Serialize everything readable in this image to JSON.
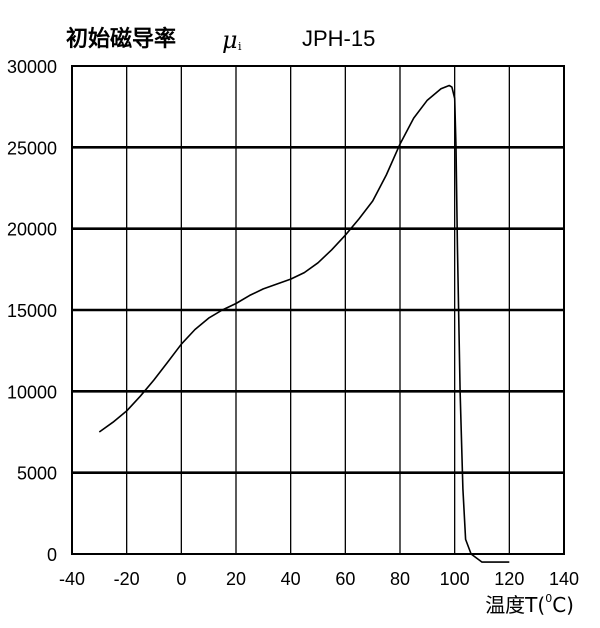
{
  "chart_data": {
    "type": "line",
    "title": {
      "main": "初始磁导率",
      "symbol": "μ",
      "symbol_subscript": "i",
      "model": "JPH-15"
    },
    "xlabel": {
      "prefix": "温度T(",
      "superscript": "0",
      "suffix": "C)"
    },
    "ylabel": "",
    "xlim": [
      -40,
      140
    ],
    "ylim": [
      0,
      30000
    ],
    "xticks": [
      -40,
      -20,
      0,
      20,
      40,
      60,
      80,
      100,
      120,
      140
    ],
    "yticks": [
      0,
      5000,
      10000,
      15000,
      20000,
      25000,
      30000
    ],
    "grid": true,
    "series": [
      {
        "x": [
          -30,
          -25,
          -20,
          -15,
          -10,
          -5,
          0,
          5,
          10,
          15,
          20,
          25,
          30,
          35,
          40,
          45,
          50,
          55,
          60,
          65,
          70,
          75,
          80,
          85,
          90,
          95,
          98,
          99,
          100,
          100.5,
          101,
          102,
          103,
          104,
          106,
          110,
          115,
          120
        ],
        "y": [
          7500,
          8100,
          8800,
          9700,
          10700,
          11800,
          12900,
          13800,
          14500,
          15000,
          15400,
          15900,
          16300,
          16600,
          16900,
          17300,
          17900,
          18700,
          19600,
          20600,
          21700,
          23300,
          25200,
          26800,
          27900,
          28600,
          28800,
          28700,
          28000,
          25000,
          19000,
          10000,
          4000,
          900,
          0,
          -500,
          -500,
          -500
        ]
      }
    ]
  }
}
